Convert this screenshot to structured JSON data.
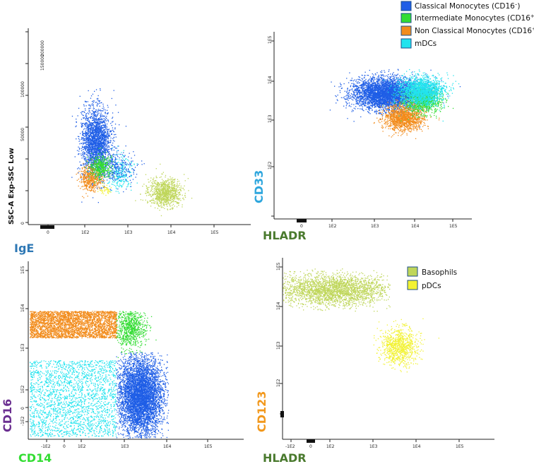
{
  "colors": {
    "classical": "#1f5ee6",
    "intermediate": "#33dd33",
    "nonclassical": "#f28c1c",
    "mdc": "#22e3ee",
    "basophil": "#bfd65a",
    "pdc": "#f2f233",
    "ige": "#2e78b5",
    "cd33": "#2ea6dd",
    "hladr": "#4a7a2e",
    "cd16": "#6a2e90",
    "cd14": "#33dd33",
    "cd123": "#f2981c"
  },
  "legends": {
    "monocytes": [
      {
        "name": "Classical Monocytes (CD16",
        "sup": "–",
        "tail": ")"
      },
      {
        "name": "Intermediate Monocytes (CD16",
        "sup": "+",
        "tail": ")"
      },
      {
        "name": "Non Classical Monocytes (CD16",
        "sup": "+",
        "tail": ")"
      },
      {
        "name": "mDCs",
        "sup": "",
        "tail": ""
      }
    ],
    "basophils": [
      {
        "name": "Basophils"
      },
      {
        "name": "pDCs"
      }
    ]
  },
  "chart_data": [
    {
      "type": "scatter",
      "id": "ige-ssc",
      "xlabel": "IgE",
      "ylabel": "SSC-A Exp-SSC Low",
      "x_scale": "biexponential",
      "x_ticks": [
        "0",
        "1E2",
        "1E3",
        "1E4",
        "1E5"
      ],
      "y_ticks": [
        "0",
        "50000",
        "100000",
        "150000",
        "200000"
      ],
      "series": [
        {
          "name": "Classical Monocytes (CD16–)",
          "center": [
            "3.0E2",
            38000
          ]
        },
        {
          "name": "Intermediate Monocytes (CD16+)",
          "center": [
            "3.0E2",
            23000
          ]
        },
        {
          "name": "Non Classical Monocytes (CD16+)",
          "center": [
            "2.2E2",
            20000
          ]
        },
        {
          "name": "mDCs",
          "center": [
            "7.0E2",
            22000
          ]
        },
        {
          "name": "Basophils",
          "center": [
            "5.0E3",
            15000
          ]
        }
      ]
    },
    {
      "type": "scatter",
      "id": "hladr-cd33",
      "xlabel": "HLADR",
      "ylabel": "CD33",
      "x_scale": "biexponential",
      "y_scale": "biexponential",
      "x_ticks": [
        "0",
        "1E2",
        "1E3",
        "1E4",
        "1E5"
      ],
      "y_ticks": [
        "0",
        "1E2",
        "1E3",
        "1E4",
        "1E5"
      ],
      "series": [
        {
          "name": "Classical Monocytes (CD16–)",
          "center": [
            "1.5E3",
            "4E3"
          ]
        },
        {
          "name": "Intermediate Monocytes (CD16+)",
          "center": [
            "1.2E4",
            "3E3"
          ]
        },
        {
          "name": "Non Classical Monocytes (CD16+)",
          "center": [
            "6E3",
            "1E3"
          ]
        },
        {
          "name": "mDCs",
          "center": [
            "1.0E4",
            "5E3"
          ]
        }
      ]
    },
    {
      "type": "scatter",
      "id": "cd14-cd16",
      "xlabel": "CD14",
      "ylabel": "CD16",
      "x_scale": "biexponential",
      "y_scale": "biexponential",
      "x_ticks": [
        "-1E2",
        "0",
        "1E2",
        "1E3",
        "1E4",
        "1E5"
      ],
      "y_ticks": [
        "-1E2",
        "0",
        "1E2",
        "1E3",
        "1E4",
        "1E5"
      ],
      "series": [
        {
          "name": "Non Classical Monocytes (CD16+)",
          "center": [
            "1E2",
            "6E3"
          ]
        },
        {
          "name": "Intermediate Monocytes (CD16+)",
          "center": [
            "1.5E3",
            "3E3"
          ]
        },
        {
          "name": "Classical Monocytes (CD16–)",
          "center": [
            "1.5E3",
            "1E2"
          ]
        },
        {
          "name": "mDCs",
          "center": [
            "1E2",
            "50"
          ]
        }
      ]
    },
    {
      "type": "scatter",
      "id": "hladr-cd123",
      "xlabel": "HLADR",
      "ylabel": "CD123",
      "x_scale": "biexponential",
      "y_scale": "biexponential",
      "x_ticks": [
        "-1E2",
        "0",
        "1E2",
        "1E3",
        "1E4",
        "1E5"
      ],
      "y_ticks": [
        "0",
        "1E2",
        "1E3",
        "1E4",
        "1E5"
      ],
      "series": [
        {
          "name": "Basophils",
          "center": [
            "3E2",
            "2E4"
          ]
        },
        {
          "name": "pDCs",
          "center": [
            "4E3",
            "1E3"
          ]
        }
      ]
    }
  ]
}
